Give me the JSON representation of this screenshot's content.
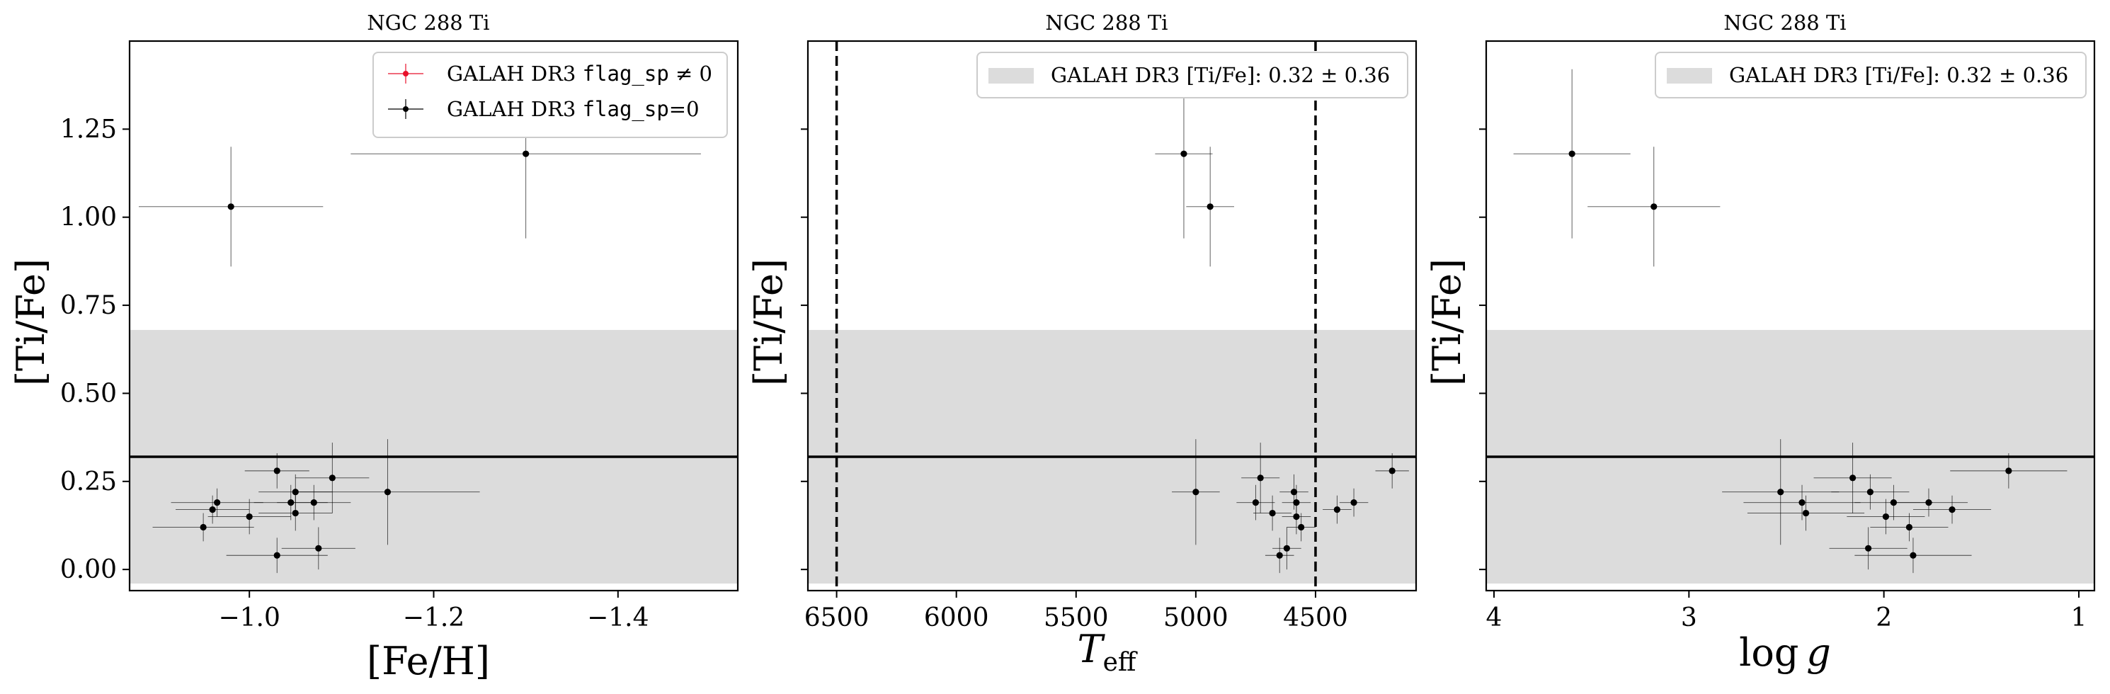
{
  "chart_data": [
    {
      "type": "scatter",
      "title": "NGC 288 Ti",
      "xlabel": "[Fe/H]",
      "ylabel": "[Ti/Fe]",
      "xlim": [
        -0.87,
        -1.53
      ],
      "ylim": [
        -0.06,
        1.5
      ],
      "xticks": [
        -1.0,
        -1.2,
        -1.4
      ],
      "xtick_labels": [
        "−1.0",
        "−1.2",
        "−1.4"
      ],
      "yticks": [
        0.0,
        0.25,
        0.5,
        0.75,
        1.0,
        1.25
      ],
      "ytick_labels": [
        "0.00",
        "0.25",
        "0.50",
        "0.75",
        "1.00",
        "1.25"
      ],
      "reference": {
        "mean": 0.32,
        "std": 0.36,
        "band": [
          -0.04,
          0.68
        ]
      },
      "legend": {
        "position": "top-right",
        "entries": [
          {
            "label": "GALAH DR3 flag_sp ≠ 0",
            "color": "#e8102a",
            "text_prefix": "GALAH DR3 ",
            "code": "flag_sp",
            "text_suffix": " ≠ 0"
          },
          {
            "label": "GALAH DR3 flag_sp=0",
            "color": "#000000",
            "text_prefix": "GALAH DR3 ",
            "code": "flag_sp",
            "text_suffix": "=0"
          }
        ]
      },
      "series": [
        {
          "name": "GALAH DR3 flag_sp=0",
          "color": "#000000",
          "points": [
            {
              "x": -0.98,
              "y": 1.03,
              "xerr": 0.1,
              "yerr": 0.17
            },
            {
              "x": -1.3,
              "y": 1.18,
              "xerr": 0.19,
              "yerr": 0.24
            },
            {
              "x": -0.95,
              "y": 0.12,
              "xerr": 0.055,
              "yerr": 0.04
            },
            {
              "x": -0.96,
              "y": 0.17,
              "xerr": 0.04,
              "yerr": 0.04
            },
            {
              "x": -0.965,
              "y": 0.19,
              "xerr": 0.05,
              "yerr": 0.04
            },
            {
              "x": -1.0,
              "y": 0.15,
              "xerr": 0.045,
              "yerr": 0.05
            },
            {
              "x": -1.03,
              "y": 0.04,
              "xerr": 0.055,
              "yerr": 0.05
            },
            {
              "x": -1.03,
              "y": 0.28,
              "xerr": 0.035,
              "yerr": 0.05
            },
            {
              "x": -1.045,
              "y": 0.19,
              "xerr": 0.04,
              "yerr": 0.05
            },
            {
              "x": -1.05,
              "y": 0.22,
              "xerr": 0.04,
              "yerr": 0.05
            },
            {
              "x": -1.05,
              "y": 0.16,
              "xerr": 0.04,
              "yerr": 0.05
            },
            {
              "x": -1.07,
              "y": 0.19,
              "xerr": 0.04,
              "yerr": 0.05
            },
            {
              "x": -1.075,
              "y": 0.06,
              "xerr": 0.04,
              "yerr": 0.06
            },
            {
              "x": -1.09,
              "y": 0.26,
              "xerr": 0.04,
              "yerr": 0.1
            },
            {
              "x": -1.15,
              "y": 0.22,
              "xerr": 0.1,
              "yerr": 0.15
            }
          ]
        }
      ]
    },
    {
      "type": "scatter",
      "title": "NGC 288 Ti",
      "xlabel": "T_eff",
      "xlabel_main": "T",
      "xlabel_sub": "eff",
      "ylabel": "[Ti/Fe]",
      "xlim": [
        6620,
        4080
      ],
      "ylim": [
        -0.06,
        1.5
      ],
      "xticks": [
        6500,
        6000,
        5500,
        5000,
        4500
      ],
      "xtick_labels": [
        "6500",
        "6000",
        "5500",
        "5000",
        "4500"
      ],
      "yticks": [
        0.0,
        0.25,
        0.5,
        0.75,
        1.0,
        1.25
      ],
      "ytick_labels": [
        "",
        "",
        "",
        "",
        "",
        ""
      ],
      "vlines": [
        6500,
        4500
      ],
      "reference": {
        "mean": 0.32,
        "std": 0.36,
        "band": [
          -0.04,
          0.68
        ]
      },
      "legend": {
        "position": "top-right",
        "entries": [
          {
            "label": "GALAH DR3 [Ti/Fe]: 0.32 ± 0.36",
            "color": "#dcdcdc"
          }
        ]
      },
      "series": [
        {
          "name": "GALAH DR3 flag_sp=0",
          "color": "#000000",
          "points": [
            {
              "x": 5050,
              "y": 1.18,
              "xerr": 120,
              "yerr": 0.24
            },
            {
              "x": 4940,
              "y": 1.03,
              "xerr": 100,
              "yerr": 0.17
            },
            {
              "x": 5000,
              "y": 0.22,
              "xerr": 100,
              "yerr": 0.15
            },
            {
              "x": 4730,
              "y": 0.26,
              "xerr": 80,
              "yerr": 0.1
            },
            {
              "x": 4750,
              "y": 0.19,
              "xerr": 80,
              "yerr": 0.05
            },
            {
              "x": 4680,
              "y": 0.16,
              "xerr": 80,
              "yerr": 0.05
            },
            {
              "x": 4590,
              "y": 0.22,
              "xerr": 60,
              "yerr": 0.05
            },
            {
              "x": 4580,
              "y": 0.19,
              "xerr": 60,
              "yerr": 0.05
            },
            {
              "x": 4580,
              "y": 0.15,
              "xerr": 60,
              "yerr": 0.05
            },
            {
              "x": 4560,
              "y": 0.12,
              "xerr": 60,
              "yerr": 0.04
            },
            {
              "x": 4620,
              "y": 0.06,
              "xerr": 60,
              "yerr": 0.06
            },
            {
              "x": 4650,
              "y": 0.04,
              "xerr": 60,
              "yerr": 0.05
            },
            {
              "x": 4410,
              "y": 0.17,
              "xerr": 60,
              "yerr": 0.04
            },
            {
              "x": 4340,
              "y": 0.19,
              "xerr": 60,
              "yerr": 0.04
            },
            {
              "x": 4180,
              "y": 0.28,
              "xerr": 70,
              "yerr": 0.05
            }
          ]
        }
      ]
    },
    {
      "type": "scatter",
      "title": "NGC 288 Ti",
      "xlabel": "log g",
      "xlabel_main": "log ",
      "xlabel_italic": "g",
      "ylabel": "[Ti/Fe]",
      "xlim": [
        4.04,
        0.92
      ],
      "ylim": [
        -0.06,
        1.5
      ],
      "xticks": [
        4,
        3,
        2,
        1
      ],
      "xtick_labels": [
        "4",
        "3",
        "2",
        "1"
      ],
      "yticks": [
        0.0,
        0.25,
        0.5,
        0.75,
        1.0,
        1.25
      ],
      "ytick_labels": [
        "",
        "",
        "",
        "",
        "",
        ""
      ],
      "reference": {
        "mean": 0.32,
        "std": 0.36,
        "band": [
          -0.04,
          0.68
        ]
      },
      "legend": {
        "position": "top-right",
        "entries": [
          {
            "label": "GALAH DR3 [Ti/Fe]: 0.32 ± 0.36",
            "color": "#dcdcdc"
          }
        ]
      },
      "series": [
        {
          "name": "GALAH DR3 flag_sp=0",
          "color": "#000000",
          "points": [
            {
              "x": 3.6,
              "y": 1.18,
              "xerr": 0.3,
              "yerr": 0.24
            },
            {
              "x": 3.18,
              "y": 1.03,
              "xerr": 0.34,
              "yerr": 0.17
            },
            {
              "x": 2.53,
              "y": 0.22,
              "xerr": 0.3,
              "yerr": 0.15
            },
            {
              "x": 2.42,
              "y": 0.19,
              "xerr": 0.3,
              "yerr": 0.05
            },
            {
              "x": 2.4,
              "y": 0.16,
              "xerr": 0.3,
              "yerr": 0.05
            },
            {
              "x": 2.16,
              "y": 0.26,
              "xerr": 0.2,
              "yerr": 0.1
            },
            {
              "x": 2.07,
              "y": 0.22,
              "xerr": 0.2,
              "yerr": 0.05
            },
            {
              "x": 1.95,
              "y": 0.19,
              "xerr": 0.2,
              "yerr": 0.05
            },
            {
              "x": 1.99,
              "y": 0.15,
              "xerr": 0.2,
              "yerr": 0.05
            },
            {
              "x": 1.87,
              "y": 0.12,
              "xerr": 0.2,
              "yerr": 0.04
            },
            {
              "x": 1.77,
              "y": 0.19,
              "xerr": 0.2,
              "yerr": 0.04
            },
            {
              "x": 1.65,
              "y": 0.17,
              "xerr": 0.2,
              "yerr": 0.04
            },
            {
              "x": 2.08,
              "y": 0.06,
              "xerr": 0.2,
              "yerr": 0.06
            },
            {
              "x": 1.85,
              "y": 0.04,
              "xerr": 0.3,
              "yerr": 0.05
            },
            {
              "x": 1.36,
              "y": 0.28,
              "xerr": 0.3,
              "yerr": 0.05
            }
          ]
        }
      ]
    }
  ]
}
